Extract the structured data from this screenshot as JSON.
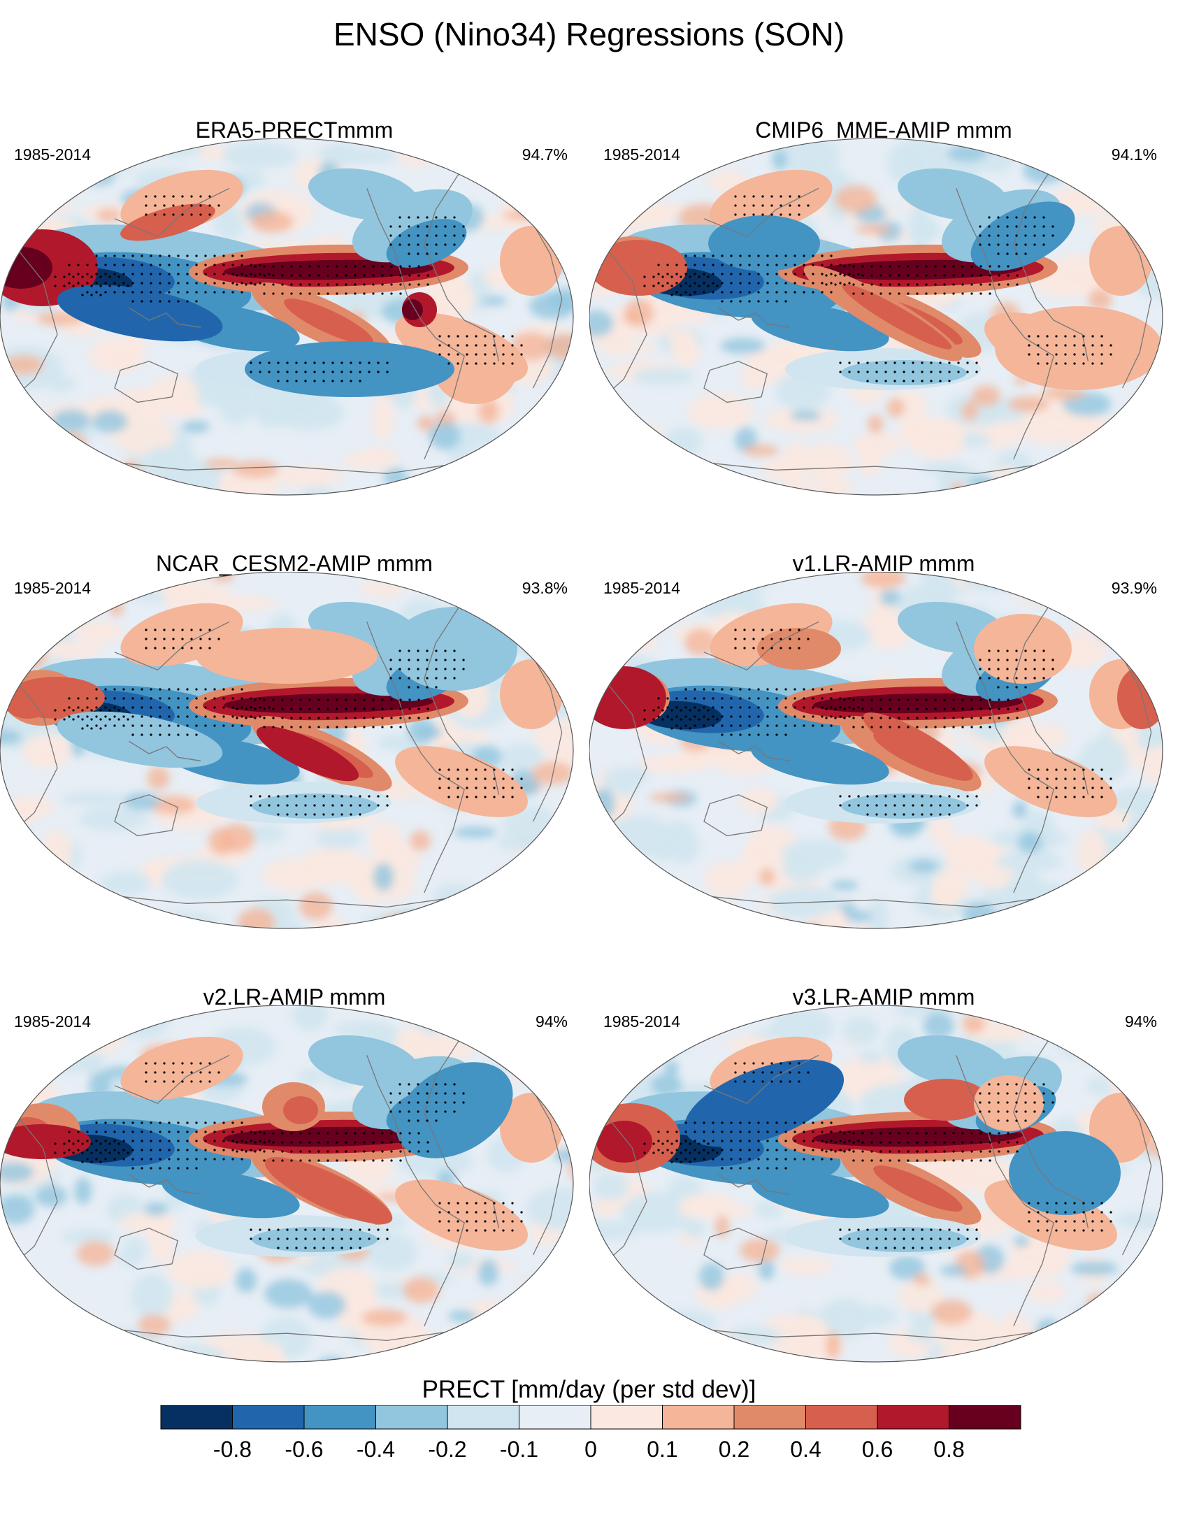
{
  "title": "ENSO (Nino34) Regressions (SON)",
  "colors": {
    "levels": [
      "#053061",
      "#2166ac",
      "#4393c3",
      "#92c5de",
      "#d1e5f0",
      "#e7eef5",
      "#fbe8e0",
      "#f4b599",
      "#e08a6a",
      "#d6604d",
      "#b2182b",
      "#67001f"
    ],
    "coastline": "#777777",
    "stipple": "#000000"
  },
  "panels": [
    {
      "title": "ERA5-PRECTmmm",
      "years": "1985-2014",
      "pct": "94.7%"
    },
    {
      "title": "CMIP6_MME-AMIP  mmm",
      "years": "1985-2014",
      "pct": "94.1%"
    },
    {
      "title": "NCAR_CESM2-AMIP  mmm",
      "years": "1985-2014",
      "pct": "93.8%"
    },
    {
      "title": "v1.LR-AMIP  mmm",
      "years": "1985-2014",
      "pct": "93.9%"
    },
    {
      "title": "v2.LR-AMIP  mmm",
      "years": "1985-2014",
      "pct": "94%"
    },
    {
      "title": "v3.LR-AMIP  mmm",
      "years": "1985-2014",
      "pct": "94%"
    }
  ],
  "colorbar": {
    "title": "PRECT [mm/day (per std dev)]",
    "labels": [
      "-0.8",
      "-0.6",
      "-0.4",
      "-0.2",
      "-0.1",
      "0",
      "0.1",
      "0.2",
      "0.4",
      "0.6",
      "0.8"
    ]
  },
  "chart_data": {
    "type": "heatmap",
    "projection": "Robinson (global, 180° centered on Pacific)",
    "variable": "PRECT",
    "units": "mm/day (per std dev)",
    "contour_levels": [
      -0.8,
      -0.6,
      -0.4,
      -0.2,
      -0.1,
      0,
      0.1,
      0.2,
      0.4,
      0.6,
      0.8
    ],
    "period": "1985-2014",
    "season": "SON",
    "index": "Nino34"
  }
}
